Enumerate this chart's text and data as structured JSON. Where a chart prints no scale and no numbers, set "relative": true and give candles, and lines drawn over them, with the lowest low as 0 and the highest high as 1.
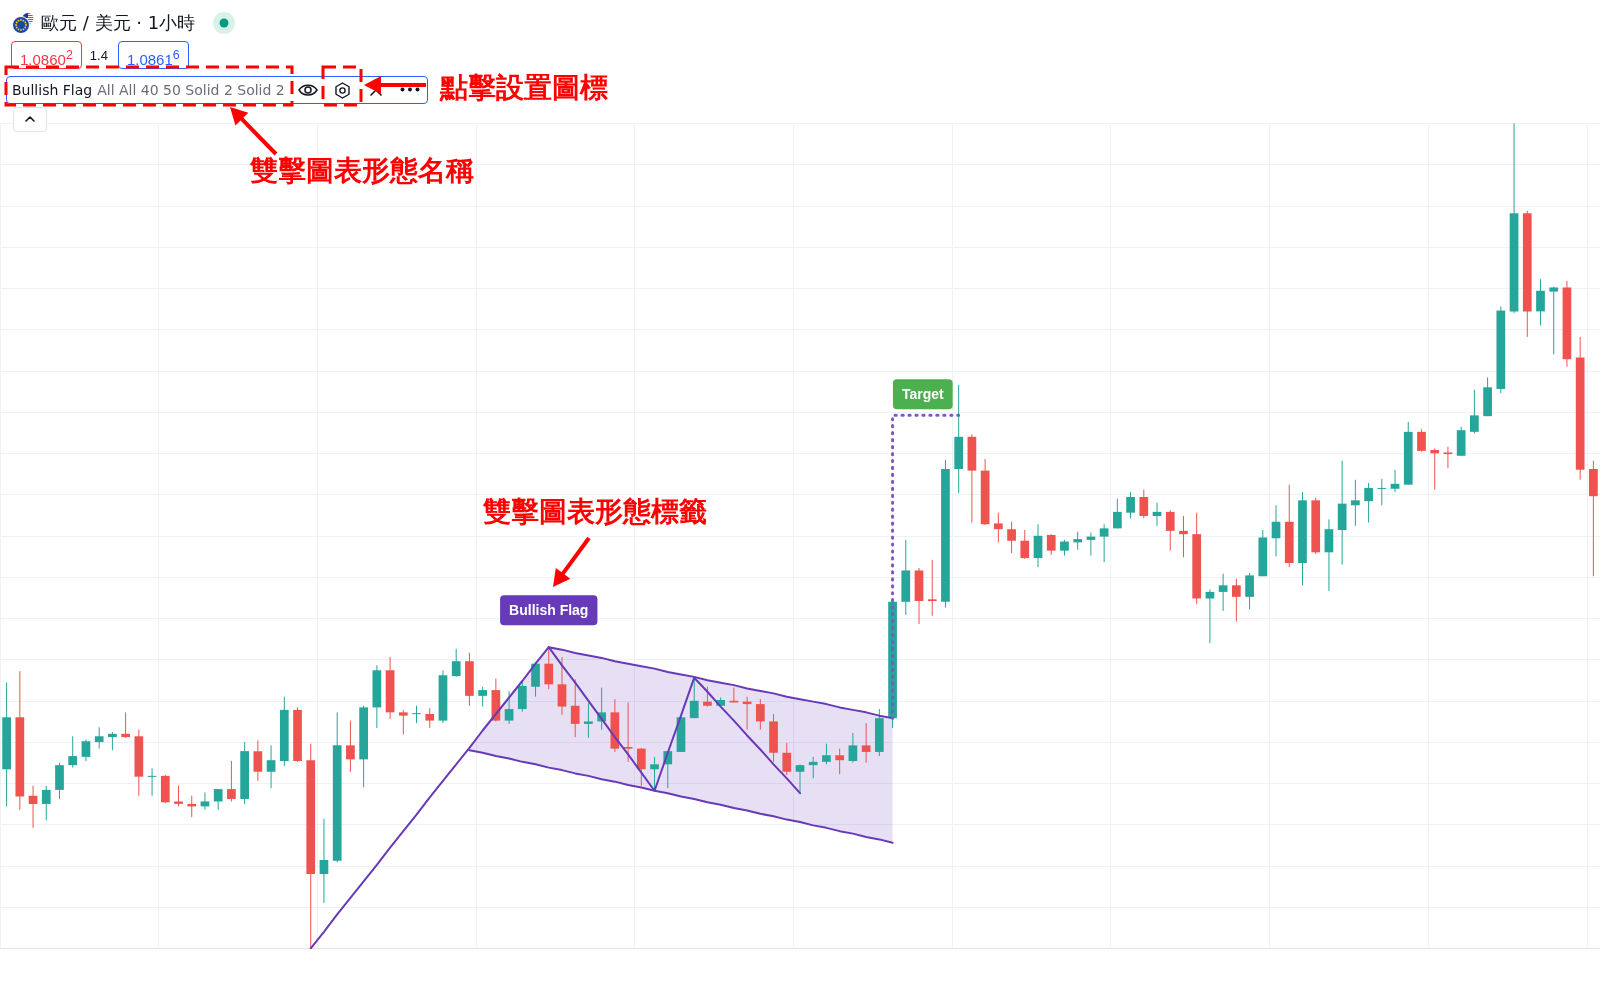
{
  "chart_data": {
    "type": "candlestick",
    "title": "歐元 / 美元 · 1小時",
    "relative": true,
    "grid": true,
    "categories": [
      null,
      null,
      null,
      null,
      null,
      null,
      null,
      null,
      null,
      null,
      null,
      null,
      null,
      null,
      null,
      null,
      null,
      null,
      null,
      null,
      null,
      null,
      null,
      null,
      null,
      null,
      null,
      null,
      null,
      null,
      null,
      null,
      null,
      null,
      null,
      null,
      null,
      null,
      null,
      null,
      null,
      null,
      null,
      null,
      null,
      null,
      null,
      null,
      null,
      null,
      null,
      null,
      null,
      null,
      null,
      null,
      null,
      null,
      null,
      null,
      null,
      null,
      null,
      null,
      null,
      null,
      null,
      null,
      null,
      null,
      null,
      null,
      null,
      null,
      null,
      null,
      null,
      null,
      null,
      null,
      null,
      null,
      null,
      null,
      null,
      null,
      null,
      null,
      null,
      null,
      null,
      null,
      null,
      null,
      null,
      null,
      null,
      null,
      null,
      null,
      null,
      null,
      null,
      null,
      null,
      null,
      null,
      null,
      null,
      null,
      null,
      null,
      null,
      null,
      null,
      null,
      null,
      null,
      null,
      null,
      null
    ],
    "ohlc": [
      [
        0.217,
        0.322,
        0.172,
        0.28
      ],
      [
        0.28,
        0.336,
        0.168,
        0.184
      ],
      [
        0.185,
        0.197,
        0.146,
        0.175
      ],
      [
        0.175,
        0.197,
        0.155,
        0.192
      ],
      [
        0.192,
        0.225,
        0.181,
        0.222
      ],
      [
        0.222,
        0.257,
        0.219,
        0.233
      ],
      [
        0.232,
        0.253,
        0.227,
        0.251
      ],
      [
        0.25,
        0.268,
        0.242,
        0.257
      ],
      [
        0.256,
        0.262,
        0.24,
        0.26
      ],
      [
        0.26,
        0.286,
        0.255,
        0.256
      ],
      [
        0.257,
        0.265,
        0.185,
        0.208
      ],
      [
        0.208,
        0.218,
        0.185,
        0.209
      ],
      [
        0.209,
        0.21,
        0.176,
        0.177
      ],
      [
        0.178,
        0.197,
        0.172,
        0.175
      ],
      [
        0.175,
        0.185,
        0.159,
        0.172
      ],
      [
        0.172,
        0.189,
        0.168,
        0.178
      ],
      [
        0.178,
        0.193,
        0.168,
        0.193
      ],
      [
        0.193,
        0.227,
        0.178,
        0.181
      ],
      [
        0.181,
        0.25,
        0.175,
        0.239
      ],
      [
        0.239,
        0.252,
        0.203,
        0.214
      ],
      [
        0.214,
        0.246,
        0.194,
        0.228
      ],
      [
        0.227,
        0.305,
        0.221,
        0.289
      ],
      [
        0.289,
        0.292,
        0.226,
        0.227
      ],
      [
        0.228,
        0.248,
        0,
        0.09
      ],
      [
        0.09,
        0.157,
        0.055,
        0.107
      ],
      [
        0.106,
        0.286,
        0.104,
        0.246
      ],
      [
        0.246,
        0.276,
        0.214,
        0.229
      ],
      [
        0.229,
        0.294,
        0.195,
        0.292
      ],
      [
        0.292,
        0.343,
        0.267,
        0.337
      ],
      [
        0.337,
        0.353,
        0.278,
        0.286
      ],
      [
        0.286,
        0.289,
        0.259,
        0.282
      ],
      [
        0.284,
        0.294,
        0.273,
        0.285
      ],
      [
        0.284,
        0.291,
        0.267,
        0.276
      ],
      [
        0.276,
        0.337,
        0.273,
        0.331
      ],
      [
        0.33,
        0.363,
        0.329,
        0.348
      ],
      [
        0.348,
        0.358,
        0.294,
        0.306
      ],
      [
        0.306,
        0.317,
        0.293,
        0.313
      ],
      [
        0.313,
        0.327,
        0.275,
        0.276
      ],
      [
        0.276,
        0.312,
        0.272,
        0.29
      ],
      [
        0.29,
        0.323,
        0.287,
        0.318
      ],
      [
        0.317,
        0.347,
        0.305,
        0.345
      ],
      [
        0.345,
        0.365,
        0.314,
        0.32
      ],
      [
        0.32,
        0.353,
        0.283,
        0.293
      ],
      [
        0.294,
        0.326,
        0.256,
        0.272
      ],
      [
        0.272,
        0.297,
        0.255,
        0.275
      ],
      [
        0.275,
        0.316,
        0.265,
        0.286
      ],
      [
        0.286,
        0.302,
        0.238,
        0.242
      ],
      [
        0.244,
        0.298,
        0.226,
        0.242
      ],
      [
        0.242,
        0.243,
        0.197,
        0.217
      ],
      [
        0.217,
        0.232,
        0.192,
        0.223
      ],
      [
        0.223,
        0.239,
        0.194,
        0.239
      ],
      [
        0.238,
        0.281,
        0.238,
        0.28
      ],
      [
        0.279,
        0.327,
        0.279,
        0.3
      ],
      [
        0.299,
        0.317,
        0.293,
        0.294
      ],
      [
        0.294,
        0.304,
        0.293,
        0.301
      ],
      [
        0.3,
        0.316,
        0.298,
        0.298
      ],
      [
        0.299,
        0.305,
        0.265,
        0.296
      ],
      [
        0.296,
        0.302,
        0.265,
        0.275
      ],
      [
        0.275,
        0.284,
        0.226,
        0.237
      ],
      [
        0.237,
        0.249,
        0.21,
        0.214
      ],
      [
        0.214,
        0.223,
        0.188,
        0.222
      ],
      [
        0.222,
        0.232,
        0.206,
        0.226
      ],
      [
        0.226,
        0.248,
        0.223,
        0.234
      ],
      [
        0.234,
        0.242,
        0.211,
        0.228
      ],
      [
        0.227,
        0.261,
        0.225,
        0.246
      ],
      [
        0.246,
        0.273,
        0.225,
        0.238
      ],
      [
        0.238,
        0.29,
        0.233,
        0.279
      ],
      [
        0.279,
        0.422,
        0.267,
        0.42
      ],
      [
        0.42,
        0.495,
        0.404,
        0.458
      ],
      [
        0.458,
        0.461,
        0.393,
        0.421
      ],
      [
        0.423,
        0.471,
        0.403,
        0.421
      ],
      [
        0.42,
        0.592,
        0.413,
        0.581
      ],
      [
        0.581,
        0.683,
        0.552,
        0.62
      ],
      [
        0.62,
        0.623,
        0.516,
        0.579
      ],
      [
        0.579,
        0.593,
        0.513,
        0.514
      ],
      [
        0.515,
        0.528,
        0.492,
        0.508
      ],
      [
        0.508,
        0.517,
        0.479,
        0.494
      ],
      [
        0.494,
        0.507,
        0.472,
        0.473
      ],
      [
        0.473,
        0.514,
        0.462,
        0.5
      ],
      [
        0.501,
        0.502,
        0.477,
        0.482
      ],
      [
        0.482,
        0.495,
        0.476,
        0.493
      ],
      [
        0.492,
        0.505,
        0.483,
        0.496
      ],
      [
        0.495,
        0.504,
        0.476,
        0.499
      ],
      [
        0.499,
        0.514,
        0.468,
        0.509
      ],
      [
        0.509,
        0.545,
        0.509,
        0.529
      ],
      [
        0.528,
        0.553,
        0.521,
        0.547
      ],
      [
        0.547,
        0.556,
        0.521,
        0.524
      ],
      [
        0.524,
        0.54,
        0.512,
        0.529
      ],
      [
        0.529,
        0.531,
        0.482,
        0.506
      ],
      [
        0.506,
        0.524,
        0.474,
        0.502
      ],
      [
        0.502,
        0.528,
        0.417,
        0.424
      ],
      [
        0.424,
        0.435,
        0.37,
        0.432
      ],
      [
        0.432,
        0.454,
        0.409,
        0.44
      ],
      [
        0.44,
        0.448,
        0.396,
        0.426
      ],
      [
        0.426,
        0.455,
        0.411,
        0.452
      ],
      [
        0.451,
        0.507,
        0.451,
        0.498
      ],
      [
        0.497,
        0.537,
        0.475,
        0.517
      ],
      [
        0.517,
        0.562,
        0.462,
        0.467
      ],
      [
        0.467,
        0.553,
        0.44,
        0.543
      ],
      [
        0.543,
        0.546,
        0.478,
        0.48
      ],
      [
        0.48,
        0.52,
        0.433,
        0.508
      ],
      [
        0.507,
        0.591,
        0.465,
        0.539
      ],
      [
        0.537,
        0.568,
        0.512,
        0.543
      ],
      [
        0.542,
        0.564,
        0.516,
        0.558
      ],
      [
        0.557,
        0.569,
        0.537,
        0.558
      ],
      [
        0.557,
        0.58,
        0.553,
        0.563
      ],
      [
        0.562,
        0.638,
        0.562,
        0.626
      ],
      [
        0.626,
        0.629,
        0.602,
        0.603
      ],
      [
        0.604,
        0.606,
        0.556,
        0.6
      ],
      [
        0.601,
        0.608,
        0.582,
        0.599
      ],
      [
        0.597,
        0.632,
        0.597,
        0.628
      ],
      [
        0.626,
        0.677,
        0.624,
        0.646
      ],
      [
        0.645,
        0.692,
        0.645,
        0.68
      ],
      [
        0.678,
        0.778,
        0.673,
        0.773
      ],
      [
        0.772,
        1,
        0.77,
        0.891
      ],
      [
        0.891,
        0.894,
        0.741,
        0.772
      ],
      [
        0.772,
        0.811,
        0.755,
        0.797
      ],
      [
        0.796,
        0.802,
        0.72,
        0.801
      ],
      [
        0.801,
        0.809,
        0.705,
        0.714
      ],
      [
        0.716,
        0.741,
        0.568,
        0.58
      ],
      [
        0.581,
        0.591,
        0.451,
        0.548
      ]
    ],
    "colors": [
      "#26a69a",
      "#ef5350",
      "#ef5350",
      "#26a69a",
      "#26a69a",
      "#26a69a",
      "#26a69a",
      "#26a69a",
      "#26a69a",
      "#ef5350",
      "#ef5350",
      "#26a69a",
      "#ef5350",
      "#ef5350",
      "#ef5350",
      "#26a69a",
      "#26a69a",
      "#ef5350",
      "#26a69a",
      "#ef5350",
      "#26a69a",
      "#26a69a",
      "#ef5350",
      "#ef5350",
      "#26a69a",
      "#26a69a",
      "#ef5350",
      "#26a69a",
      "#26a69a",
      "#ef5350",
      "#ef5350",
      "#26a69a",
      "#ef5350",
      "#26a69a",
      "#26a69a",
      "#ef5350",
      "#26a69a",
      "#ef5350",
      "#26a69a",
      "#26a69a",
      "#26a69a",
      "#ef5350",
      "#ef5350",
      "#ef5350",
      "#26a69a",
      "#26a69a",
      "#ef5350",
      "#ef5350",
      "#ef5350",
      "#26a69a",
      "#26a69a",
      "#26a69a",
      "#26a69a",
      "#ef5350",
      "#26a69a",
      "#ef5350",
      "#ef5350",
      "#ef5350",
      "#ef5350",
      "#ef5350",
      "#26a69a",
      "#26a69a",
      "#26a69a",
      "#ef5350",
      "#26a69a",
      "#ef5350",
      "#26a69a",
      "#26a69a",
      "#26a69a",
      "#ef5350",
      "#ef5350",
      "#26a69a",
      "#26a69a",
      "#ef5350",
      "#ef5350",
      "#ef5350",
      "#ef5350",
      "#ef5350",
      "#26a69a",
      "#ef5350",
      "#26a69a",
      "#26a69a",
      "#26a69a",
      "#26a69a",
      "#26a69a",
      "#26a69a",
      "#ef5350",
      "#26a69a",
      "#ef5350",
      "#ef5350",
      "#ef5350",
      "#26a69a",
      "#26a69a",
      "#ef5350",
      "#26a69a",
      "#26a69a",
      "#26a69a",
      "#ef5350",
      "#26a69a",
      "#ef5350",
      "#26a69a",
      "#26a69a",
      "#26a69a",
      "#26a69a",
      "#26a69a",
      "#26a69a",
      "#26a69a",
      "#ef5350",
      "#ef5350",
      "#ef5350",
      "#26a69a",
      "#26a69a",
      "#26a69a",
      "#26a69a",
      "#26a69a",
      "#ef5350",
      "#26a69a",
      "#26a69a",
      "#ef5350",
      "#ef5350",
      "#ef5350"
    ],
    "series": [
      {
        "type": "line",
        "name": "Bullish Flag",
        "color": "#673ab7",
        "values": [
          null,
          null,
          null,
          null,
          null,
          null,
          null,
          null,
          null,
          null,
          null,
          null,
          null,
          null,
          null,
          null,
          null,
          null,
          null,
          null,
          null,
          null,
          null,
          0,
          0.02,
          0.041,
          0.061,
          0.081,
          0.101,
          0.122,
          0.142,
          0.162,
          0.183,
          0.203,
          0.223,
          0.243,
          0.264,
          0.284,
          0.304,
          0.324,
          0.345,
          0.365,
          0.343,
          0.322,
          0.3,
          0.278,
          0.256,
          0.235,
          0.213,
          0.191,
          0.237,
          0.282,
          0.328,
          0.311,
          0.293,
          0.276,
          0.258,
          0.241,
          0.223,
          0.206,
          0.188,
          null,
          null,
          null,
          null,
          null,
          null,
          null,
          null,
          null,
          null,
          null,
          null,
          null,
          null,
          null,
          null,
          null,
          null,
          null,
          null,
          null,
          null,
          null,
          null,
          null,
          null,
          null,
          null,
          null,
          null,
          null,
          null,
          null,
          null,
          null,
          null,
          null,
          null,
          null,
          null,
          null,
          null,
          null,
          null,
          null,
          null,
          null,
          null,
          null,
          null,
          null,
          null,
          null,
          null,
          null,
          null,
          null,
          null,
          null,
          null
        ]
      },
      {
        "type": "line",
        "color": "#673ab7",
        "values": [
          null,
          null,
          null,
          null,
          null,
          null,
          null,
          null,
          null,
          null,
          null,
          null,
          null,
          null,
          null,
          null,
          null,
          null,
          null,
          null,
          null,
          null,
          null,
          null,
          null,
          null,
          null,
          null,
          null,
          null,
          null,
          null,
          null,
          null,
          null,
          null,
          null,
          null,
          null,
          null,
          null,
          0.365,
          0.362,
          0.358,
          0.355,
          0.352,
          0.348,
          0.345,
          0.342,
          0.339,
          0.335,
          0.332,
          0.329,
          0.325,
          0.322,
          0.319,
          0.315,
          0.312,
          0.309,
          0.305,
          0.302,
          0.299,
          0.296,
          0.292,
          0.289,
          0.286,
          0.282,
          0.279,
          null,
          null,
          null,
          null,
          null,
          null,
          null,
          null,
          null,
          null,
          null,
          null,
          null,
          null,
          null,
          null,
          null,
          null,
          null,
          null,
          null,
          null,
          null,
          null,
          null,
          null,
          null,
          null,
          null,
          null,
          null,
          null,
          null,
          null,
          null,
          null,
          null,
          null,
          null,
          null,
          null,
          null,
          null,
          null,
          null,
          null,
          null,
          null,
          null,
          null,
          null,
          null,
          null
        ]
      },
      {
        "type": "line",
        "color": "#673ab7",
        "values": [
          null,
          null,
          null,
          null,
          null,
          null,
          null,
          null,
          null,
          null,
          null,
          null,
          null,
          null,
          null,
          null,
          null,
          null,
          null,
          null,
          null,
          null,
          null,
          null,
          null,
          null,
          null,
          null,
          null,
          null,
          null,
          null,
          null,
          null,
          null,
          0.24,
          0.237,
          0.233,
          0.23,
          0.226,
          0.223,
          0.219,
          0.216,
          0.212,
          0.209,
          0.205,
          0.202,
          0.198,
          0.195,
          0.191,
          0.188,
          0.184,
          0.181,
          0.177,
          0.174,
          0.17,
          0.167,
          0.163,
          0.16,
          0.156,
          0.153,
          0.149,
          0.146,
          0.142,
          0.139,
          0.135,
          0.132,
          0.128,
          null,
          null,
          null,
          null,
          null,
          null,
          null,
          null,
          null,
          null,
          null,
          null,
          null,
          null,
          null,
          null,
          null,
          null,
          null,
          null,
          null,
          null,
          null,
          null,
          null,
          null,
          null,
          null,
          null,
          null,
          null,
          null,
          null,
          null,
          null,
          null,
          null,
          null,
          null,
          null,
          null,
          null,
          null,
          null,
          null,
          null,
          null,
          null,
          null,
          null,
          null,
          null,
          null
        ],
        "lower": [
          null,
          null,
          null,
          null,
          null,
          null,
          null,
          null,
          null,
          null,
          null,
          null,
          null,
          null,
          null,
          null,
          null,
          null,
          null,
          null,
          null,
          null,
          null,
          null,
          null,
          null,
          null,
          null,
          null,
          null,
          null,
          null,
          null,
          null,
          null,
          0.24,
          0.237,
          0.233,
          0.23,
          0.226,
          0.223,
          0.219,
          0.216,
          0.212,
          0.209,
          0.205,
          0.202,
          0.198,
          0.195,
          0.191,
          0.188,
          0.184,
          0.181,
          0.177,
          0.174,
          0.17,
          0.167,
          0.163,
          0.16,
          0.156,
          0.153,
          0.149,
          0.146,
          0.142,
          0.139,
          0.135,
          0.132,
          0.128,
          null,
          null,
          null,
          null,
          null,
          null,
          null,
          null,
          null,
          null,
          null,
          null,
          null,
          null,
          null,
          null,
          null,
          null,
          null,
          null,
          null,
          null,
          null,
          null,
          null,
          null,
          null,
          null,
          null,
          null,
          null,
          null,
          null,
          null,
          null,
          null,
          null,
          null,
          null,
          null,
          null,
          null,
          null,
          null,
          null,
          null,
          null,
          null,
          null,
          null,
          null,
          null,
          null
        ],
        "upper": [
          null,
          null,
          null,
          null,
          null,
          null,
          null,
          null,
          null,
          null,
          null,
          null,
          null,
          null,
          null,
          null,
          null,
          null,
          null,
          null,
          null,
          null,
          null,
          null,
          null,
          null,
          null,
          null,
          null,
          null,
          null,
          null,
          null,
          null,
          null,
          0.243,
          0.264,
          0.284,
          0.304,
          0.324,
          0.345,
          0.365,
          0.362,
          0.358,
          0.355,
          0.352,
          0.348,
          0.345,
          0.342,
          0.339,
          0.335,
          0.332,
          0.329,
          0.325,
          0.322,
          0.319,
          0.315,
          0.312,
          0.309,
          0.305,
          0.302,
          0.299,
          0.296,
          0.292,
          0.289,
          0.286,
          0.282,
          0.279,
          null,
          null,
          null,
          null,
          null,
          null,
          null,
          null,
          null,
          null,
          null,
          null,
          null,
          null,
          null,
          null,
          null,
          null,
          null,
          null,
          null,
          null,
          null,
          null,
          null,
          null,
          null,
          null,
          null,
          null,
          null,
          null,
          null,
          null,
          null,
          null,
          null,
          null,
          null,
          null,
          null,
          null,
          null,
          null,
          null,
          null,
          null,
          null,
          null,
          null,
          null,
          null,
          null
        ]
      },
      {
        "type": "step",
        "name": "Target",
        "color": "#7e57c2",
        "line_style": "dotted",
        "values": [
          null,
          null,
          null,
          null,
          null,
          null,
          null,
          null,
          null,
          null,
          null,
          null,
          null,
          null,
          null,
          null,
          null,
          null,
          null,
          null,
          null,
          null,
          null,
          null,
          null,
          null,
          null,
          null,
          null,
          null,
          null,
          null,
          null,
          null,
          null,
          null,
          null,
          null,
          null,
          null,
          null,
          null,
          null,
          null,
          null,
          null,
          null,
          null,
          null,
          null,
          null,
          null,
          null,
          null,
          null,
          null,
          null,
          null,
          null,
          null,
          null,
          null,
          null,
          null,
          null,
          null,
          null,
          0.279,
          0.646,
          0.646,
          0.646,
          0.646,
          0.646,
          null,
          null,
          null,
          null,
          null,
          null,
          null,
          null,
          null,
          null,
          null,
          null,
          null,
          null,
          null,
          null,
          null,
          null,
          null,
          null,
          null,
          null,
          null,
          null,
          null,
          null,
          null,
          null,
          null,
          null,
          null,
          null,
          null,
          null,
          null,
          null,
          null,
          null,
          null,
          null,
          null,
          null,
          null,
          null,
          null,
          null,
          null,
          null
        ]
      }
    ],
    "annotations": [
      "1.0860$^{2}$",
      "1.4",
      "1.0861$^{6}$",
      "Bullish Flag",
      "All All 40 50 Solid 2 Solid 2",
      "點擊設置圖標",
      "雙擊圖表形態名稱",
      "雙擊圖表形態標籤"
    ]
  }
}
